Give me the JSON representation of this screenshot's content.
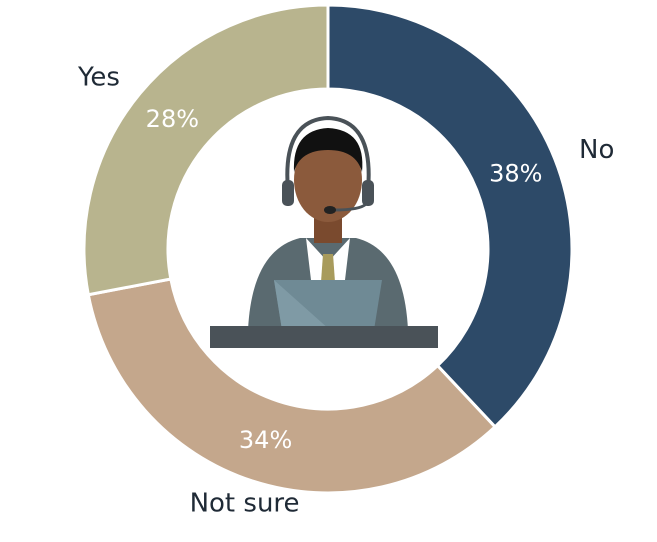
{
  "chart_data": {
    "type": "donut",
    "categories": [
      "No",
      "Not sure",
      "Yes"
    ],
    "values": [
      38,
      34,
      28
    ],
    "value_labels": [
      "38%",
      "34%",
      "28%"
    ],
    "colors": [
      "#2d4a68",
      "#c4a78c",
      "#b8b48e"
    ]
  }
}
